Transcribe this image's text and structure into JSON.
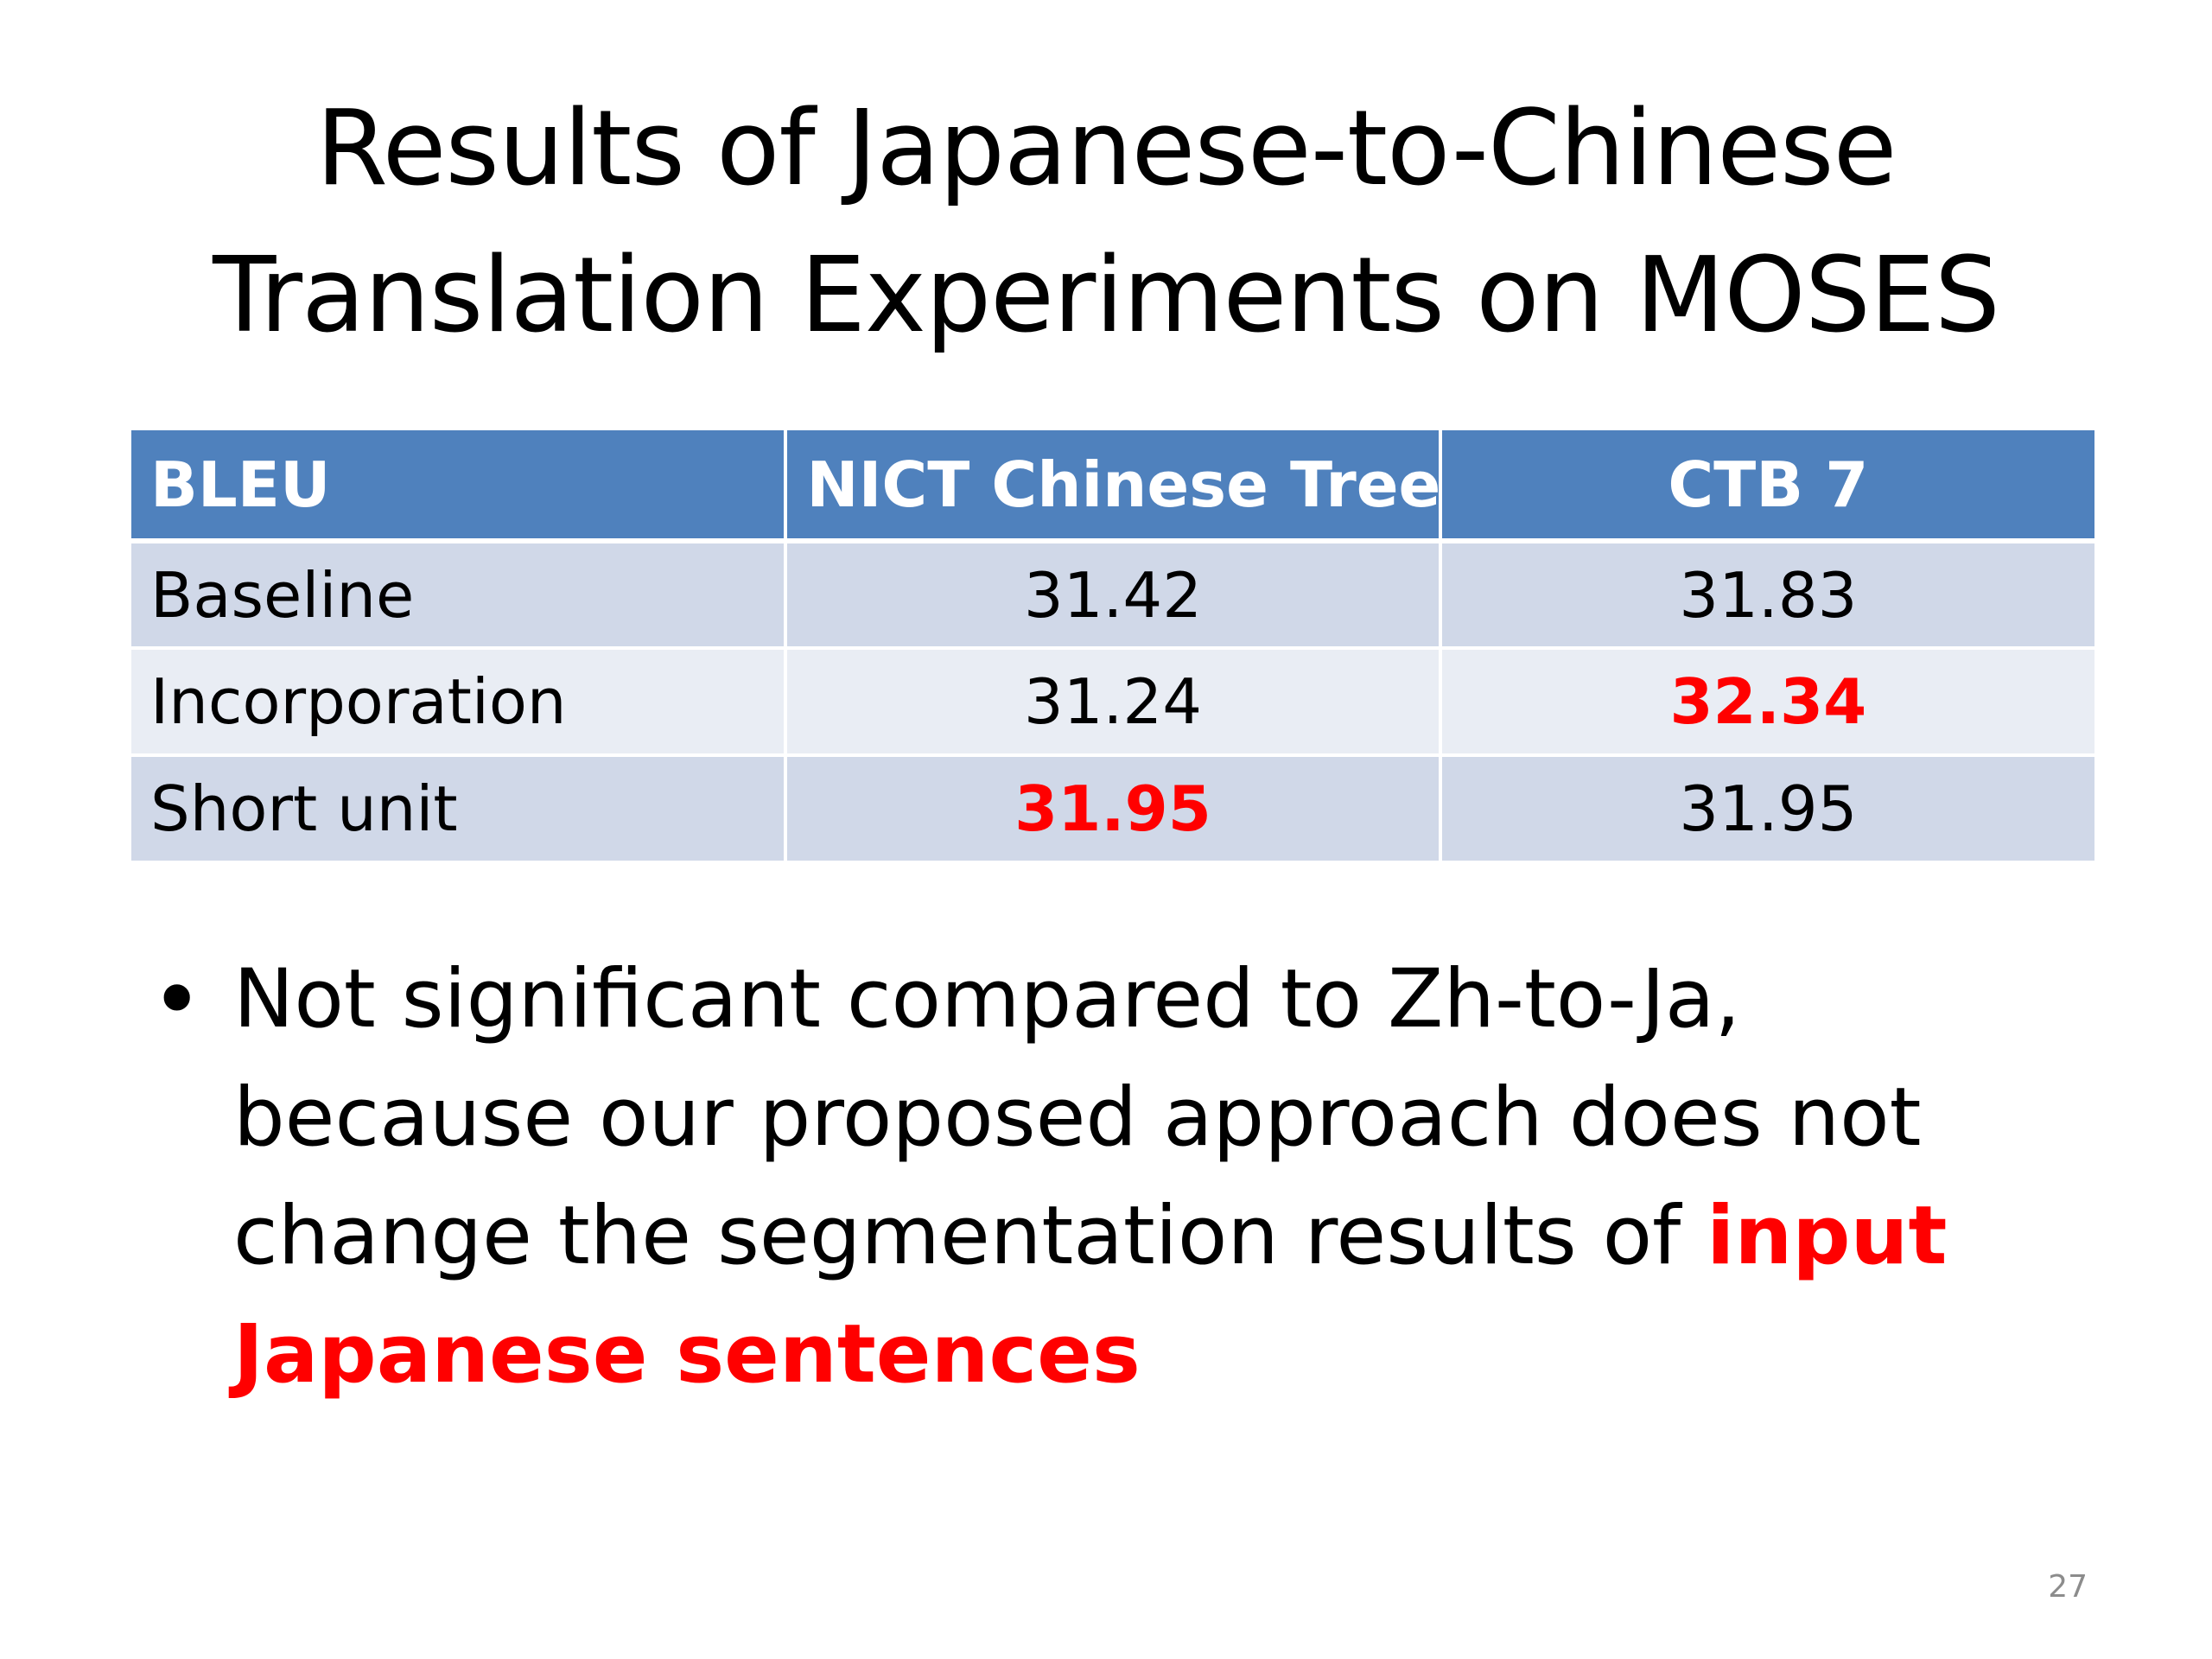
{
  "slide": {
    "title_line1": "Results of Japanese-to-Chinese",
    "title_line2": "Translation Experiments on MOSES",
    "page_number": "27"
  },
  "table": {
    "headers": [
      "BLEU",
      "NICT Chinese Treebank",
      "CTB 7"
    ],
    "rows": [
      {
        "label": "Baseline",
        "values": [
          "31.42",
          "31.83"
        ],
        "highlight": [
          false,
          false
        ]
      },
      {
        "label": "Incorporation",
        "values": [
          "31.24",
          "32.34"
        ],
        "highlight": [
          false,
          true
        ]
      },
      {
        "label": "Short unit",
        "values": [
          "31.95",
          "31.95"
        ],
        "highlight": [
          true,
          false
        ]
      }
    ],
    "colors": {
      "header_bg": "#4f81bd",
      "row_odd_bg": "#d0d8e8",
      "row_even_bg": "#e9edf4",
      "highlight_text": "#ff0000"
    }
  },
  "bullet": {
    "marker": "•",
    "text_plain": "Not significant compared to Zh-to-Ja, because our proposed approach does not change the segmentation results of ",
    "text_emphasis": "input Japanese sentences",
    "emphasis_color": "#ff0000"
  }
}
